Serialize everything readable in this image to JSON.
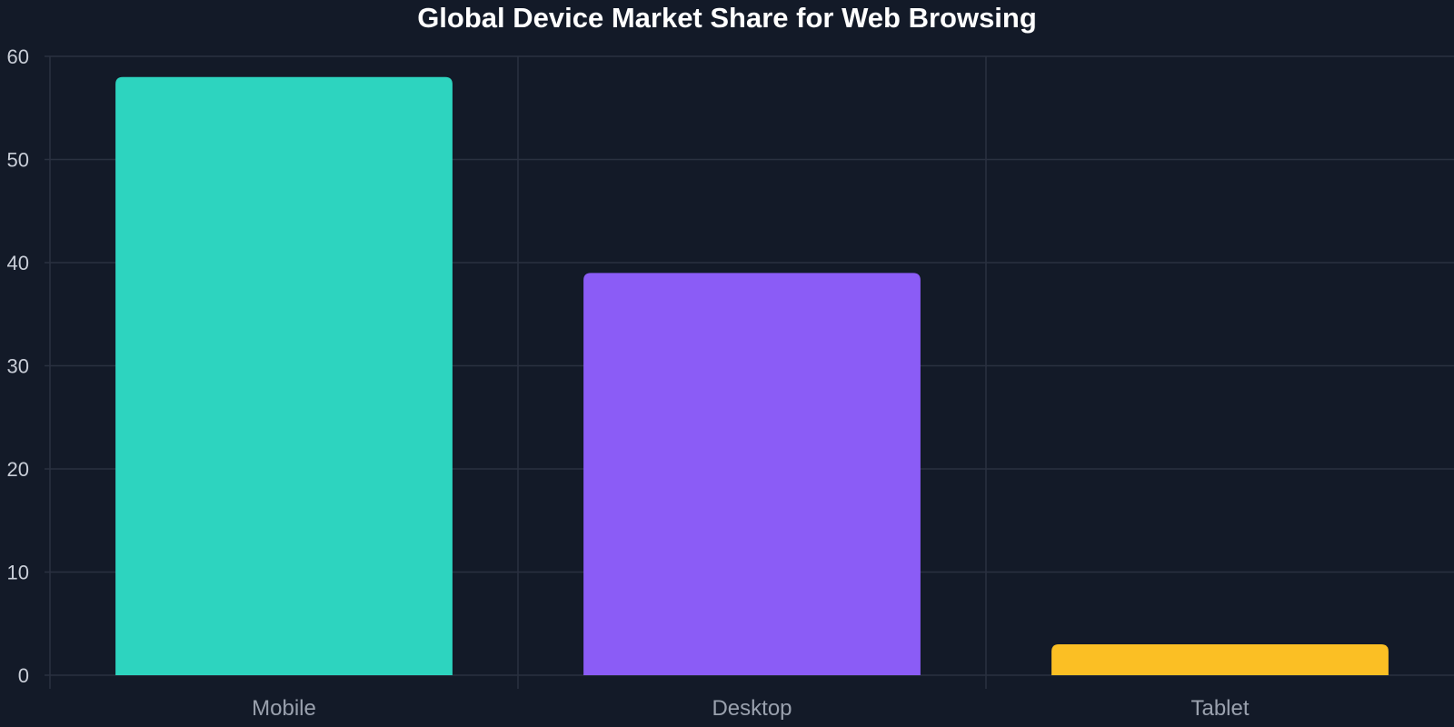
{
  "chart_data": {
    "type": "bar",
    "title": "Global Device Market Share for Web Browsing",
    "xlabel": "",
    "ylabel": "",
    "categories": [
      "Mobile",
      "Desktop",
      "Tablet"
    ],
    "values": [
      58,
      39,
      3
    ],
    "colors": [
      "#2dd4bf",
      "#8b5cf6",
      "#fbbf24"
    ],
    "ylim": [
      0,
      60
    ],
    "yticks": [
      0,
      10,
      20,
      30,
      40,
      50,
      60
    ],
    "grid": true,
    "legend": "none"
  },
  "theme": {
    "background": "#131a28",
    "grid_color": "#2a3140"
  }
}
